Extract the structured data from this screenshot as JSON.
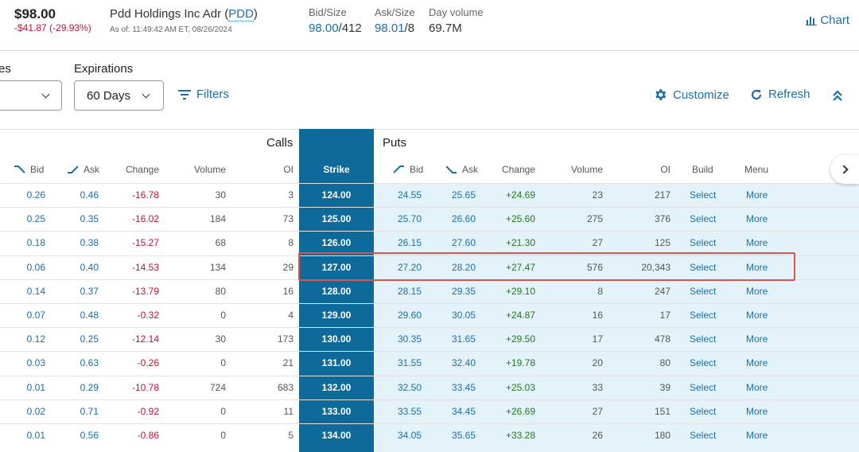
{
  "header": {
    "price": "$98.00",
    "change": "-$41.87 (-29.93%)",
    "company": "Pdd Holdings Inc Adr (",
    "ticker": "PDD",
    "company_end": ")",
    "as_of": "As of: 11:49:42 AM ET, 08/26/2024",
    "bid_size_label": "Bid/Size",
    "bid": "98.00",
    "bid_size": "/412",
    "ask_size_label": "Ask/Size",
    "ask": "98.01",
    "ask_size": "/8",
    "volume_label": "Day volume",
    "volume": "69.7M",
    "chart_label": "Chart"
  },
  "controls": {
    "partial_label": "es",
    "expirations_label": "Expirations",
    "expirations_value": "60 Days",
    "filters_label": "Filters",
    "customize_label": "Customize",
    "refresh_label": "Refresh"
  },
  "table": {
    "calls_label": "Calls",
    "puts_label": "Puts",
    "headers": {
      "call_bid": "Bid",
      "call_ask": "Ask",
      "call_change": "Change",
      "call_volume": "Volume",
      "call_oi": "OI",
      "strike": "Strike",
      "put_bid": "Bid",
      "put_ask": "Ask",
      "put_change": "Change",
      "put_volume": "Volume",
      "put_oi": "OI",
      "build": "Build",
      "menu": "Menu"
    },
    "rows": [
      {
        "cb": "0.26",
        "ca": "0.46",
        "cc": "-16.78",
        "cv": "30",
        "coi": "3",
        "strike": "124.00",
        "pb": "24.55",
        "pa": "25.65",
        "pc": "+24.69",
        "pv": "23",
        "poi": "217",
        "build": "Select",
        "menu": "More"
      },
      {
        "cb": "0.25",
        "ca": "0.35",
        "cc": "-16.02",
        "cv": "184",
        "coi": "73",
        "strike": "125.00",
        "pb": "25.70",
        "pa": "26.60",
        "pc": "+25.60",
        "pv": "275",
        "poi": "376",
        "build": "Select",
        "menu": "More"
      },
      {
        "cb": "0.18",
        "ca": "0.38",
        "cc": "-15.27",
        "cv": "68",
        "coi": "8",
        "strike": "126.00",
        "pb": "26.15",
        "pa": "27.60",
        "pc": "+21.30",
        "pv": "27",
        "poi": "125",
        "build": "Select",
        "menu": "More"
      },
      {
        "cb": "0.06",
        "ca": "0.40",
        "cc": "-14.53",
        "cv": "134",
        "coi": "29",
        "strike": "127.00",
        "pb": "27.20",
        "pa": "28.20",
        "pc": "+27.47",
        "pv": "576",
        "poi": "20,343",
        "build": "Select",
        "menu": "More"
      },
      {
        "cb": "0.14",
        "ca": "0.37",
        "cc": "-13.79",
        "cv": "80",
        "coi": "16",
        "strike": "128.00",
        "pb": "28.15",
        "pa": "29.35",
        "pc": "+29.10",
        "pv": "8",
        "poi": "247",
        "build": "Select",
        "menu": "More"
      },
      {
        "cb": "0.07",
        "ca": "0.48",
        "cc": "-0.32",
        "cv": "0",
        "coi": "4",
        "strike": "129.00",
        "pb": "29.60",
        "pa": "30.05",
        "pc": "+24.87",
        "pv": "16",
        "poi": "17",
        "build": "Select",
        "menu": "More"
      },
      {
        "cb": "0.12",
        "ca": "0.25",
        "cc": "-12.14",
        "cv": "30",
        "coi": "173",
        "strike": "130.00",
        "pb": "30.35",
        "pa": "31.65",
        "pc": "+29.50",
        "pv": "17",
        "poi": "478",
        "build": "Select",
        "menu": "More"
      },
      {
        "cb": "0.03",
        "ca": "0.63",
        "cc": "-0.26",
        "cv": "0",
        "coi": "21",
        "strike": "131.00",
        "pb": "31.55",
        "pa": "32.40",
        "pc": "+19.78",
        "pv": "20",
        "poi": "80",
        "build": "Select",
        "menu": "More"
      },
      {
        "cb": "0.01",
        "ca": "0.29",
        "cc": "-10.78",
        "cv": "724",
        "coi": "683",
        "strike": "132.00",
        "pb": "32.50",
        "pa": "33.45",
        "pc": "+25.03",
        "pv": "33",
        "poi": "39",
        "build": "Select",
        "menu": "More"
      },
      {
        "cb": "0.02",
        "ca": "0.71",
        "cc": "-0.92",
        "cv": "0",
        "coi": "11",
        "strike": "133.00",
        "pb": "33.55",
        "pa": "34.45",
        "pc": "+26.69",
        "pv": "27",
        "poi": "151",
        "build": "Select",
        "menu": "More"
      },
      {
        "cb": "0.01",
        "ca": "0.56",
        "cc": "-0.86",
        "cv": "0",
        "coi": "5",
        "strike": "134.00",
        "pb": "34.05",
        "pa": "35.65",
        "pc": "+33.28",
        "pv": "26",
        "poi": "180",
        "build": "Select",
        "menu": "More"
      }
    ]
  }
}
